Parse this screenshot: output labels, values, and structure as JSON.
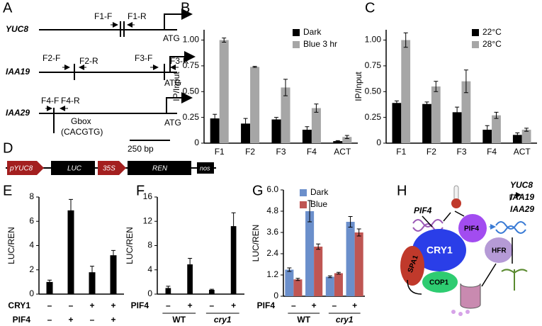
{
  "panel_labels": [
    "A",
    "B",
    "C",
    "D",
    "E",
    "F",
    "G",
    "H"
  ],
  "panel_a": {
    "genes": [
      {
        "name": "YUC8",
        "primers": [
          "F1-F",
          "F1-R"
        ],
        "start": "ATG"
      },
      {
        "name": "IAA19",
        "primers": [
          "F2-F",
          "F2-R",
          "F3-F",
          "F3-R"
        ],
        "start": "ATG"
      },
      {
        "name": "IAA29",
        "primers": [
          "F4-F",
          "F4-R"
        ],
        "start": "ATG"
      }
    ],
    "gbox": "Gbox",
    "gbox_seq": "(CACGTG)",
    "scale": "250 bp"
  },
  "panel_d": {
    "parts": [
      "pYUC8",
      "LUC",
      "35S",
      "REN",
      "nos"
    ]
  },
  "panel_h": {
    "gene": "PIF4",
    "proteins": [
      "PIF4",
      "CRY1",
      "SPA1",
      "COP1",
      "HFR"
    ],
    "targets": [
      "YUC8",
      "IAA19",
      "IAA29"
    ]
  },
  "chart_data": [
    {
      "type": "bar",
      "ylabel": "IP/Input",
      "categories": [
        "F1",
        "F2",
        "F3",
        "F4",
        "ACT"
      ],
      "series": [
        {
          "name": "Dark",
          "color": "#000000",
          "values": [
            0.24,
            0.19,
            0.23,
            0.13,
            0.02
          ],
          "errors": [
            0.04,
            0.05,
            0.02,
            0.03,
            0.005
          ]
        },
        {
          "name": "Blue 3 hr",
          "color": "#a6a6a6",
          "values": [
            1.0,
            0.74,
            0.54,
            0.34,
            0.06
          ],
          "errors": [
            0.02,
            0.005,
            0.08,
            0.04,
            0.015
          ]
        }
      ],
      "ylim": [
        0,
        1.1
      ],
      "yticks": [
        0,
        0.25,
        {
          "value": 0.5,
          "label": "0.50"
        },
        0.75,
        {
          "value": 1,
          "label": "1.00"
        }
      ],
      "legend": "upper right"
    },
    {
      "type": "bar",
      "ylabel": "IP/Input",
      "categories": [
        "F1",
        "F2",
        "F3",
        "F4",
        "ACT"
      ],
      "series": [
        {
          "name": "22°C",
          "color": "#000000",
          "values": [
            0.39,
            0.38,
            0.3,
            0.13,
            0.08
          ],
          "errors": [
            0.02,
            0.02,
            0.05,
            0.04,
            0.02
          ]
        },
        {
          "name": "28°C",
          "color": "#a6a6a6",
          "values": [
            1.0,
            0.55,
            0.6,
            0.27,
            0.13
          ],
          "errors": [
            0.07,
            0.05,
            0.11,
            0.03,
            0.015
          ]
        }
      ],
      "ylim": [
        0,
        1.1
      ],
      "yticks": [
        0,
        0.25,
        {
          "value": 0.5,
          "label": "0.50"
        },
        0.75,
        {
          "value": 1,
          "label": "1.00"
        }
      ],
      "legend": "upper right"
    },
    {
      "type": "bar",
      "ylabel": "LUC/REN",
      "series": [
        {
          "color": "#000000",
          "values": [
            1.0,
            6.9,
            1.8,
            3.2
          ],
          "errors": [
            0.15,
            0.9,
            0.5,
            0.4
          ]
        }
      ],
      "conditions": [
        {
          "name": "CRY1",
          "labels": [
            "–",
            "–",
            "+",
            "+"
          ]
        },
        {
          "name": "PIF4",
          "labels": [
            "–",
            "+",
            "–",
            "+"
          ]
        }
      ],
      "ylim": [
        0,
        8
      ],
      "yticks": [
        0,
        2,
        4,
        6,
        8
      ]
    },
    {
      "type": "bar",
      "ylabel": "LUC/REN",
      "groups": [
        "WT",
        "cry1"
      ],
      "series": [
        {
          "color": "#000000",
          "values": [
            1.0,
            4.9,
            0.7,
            11.2
          ],
          "errors": [
            0.3,
            1.0,
            0.1,
            2.2
          ]
        }
      ],
      "conditions": [
        {
          "name": "PIF4",
          "labels": [
            "–",
            "+",
            "–",
            "+"
          ]
        }
      ],
      "ylim": [
        0,
        16
      ],
      "yticks": [
        0,
        4,
        8,
        12,
        16
      ]
    },
    {
      "type": "bar",
      "ylabel": "LUC/REN",
      "groups": [
        "WT",
        "cry1"
      ],
      "series": [
        {
          "name": "Dark",
          "color": "#6b8fcb",
          "values": [
            1.5,
            4.8,
            1.1,
            4.2
          ],
          "errors": [
            0.1,
            0.6,
            0.05,
            0.3
          ]
        },
        {
          "name": "Blue",
          "color": "#bf5653",
          "values": [
            0.95,
            2.8,
            1.3,
            3.6
          ],
          "errors": [
            0.06,
            0.15,
            0.05,
            0.2
          ]
        }
      ],
      "conditions": [
        {
          "name": "PIF4",
          "labels": [
            "–",
            "+",
            "–",
            "+"
          ]
        }
      ],
      "ylim": [
        0,
        6
      ],
      "yticks": [
        0,
        1.2,
        2.4,
        3.6,
        4.8,
        {
          "value": 6,
          "label": "6.0"
        }
      ],
      "legend": "upper right"
    }
  ]
}
